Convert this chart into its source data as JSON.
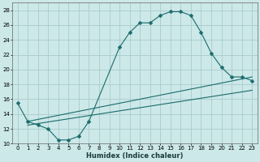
{
  "xlabel": "Humidex (Indice chaleur)",
  "bg_color": "#cce8e8",
  "grid_color": "#aacccc",
  "line_color": "#1a6b6b",
  "xlim": [
    -0.5,
    23.5
  ],
  "ylim": [
    10,
    29
  ],
  "xticks": [
    0,
    1,
    2,
    3,
    4,
    5,
    6,
    7,
    8,
    9,
    10,
    11,
    12,
    13,
    14,
    15,
    16,
    17,
    18,
    19,
    20,
    21,
    22,
    23
  ],
  "yticks": [
    10,
    12,
    14,
    16,
    18,
    20,
    22,
    24,
    26,
    28
  ],
  "curve_x": [
    0,
    1,
    2,
    3,
    4,
    5,
    6,
    7,
    10,
    11,
    12,
    13,
    14,
    15,
    16,
    17,
    18,
    19,
    20,
    21,
    22,
    23
  ],
  "curve_y": [
    15.5,
    13.0,
    12.5,
    12.0,
    10.5,
    10.5,
    11.0,
    13.0,
    23.0,
    25.0,
    26.3,
    26.3,
    27.3,
    27.8,
    27.8,
    27.3,
    25.0,
    22.2,
    20.3,
    19.0,
    19.0,
    18.5
  ],
  "line1_x": [
    1,
    23
  ],
  "line1_y": [
    13.0,
    19.0
  ],
  "line2_x": [
    1,
    23
  ],
  "line2_y": [
    12.5,
    17.2
  ],
  "marker": "D",
  "marker_size": 2.5
}
